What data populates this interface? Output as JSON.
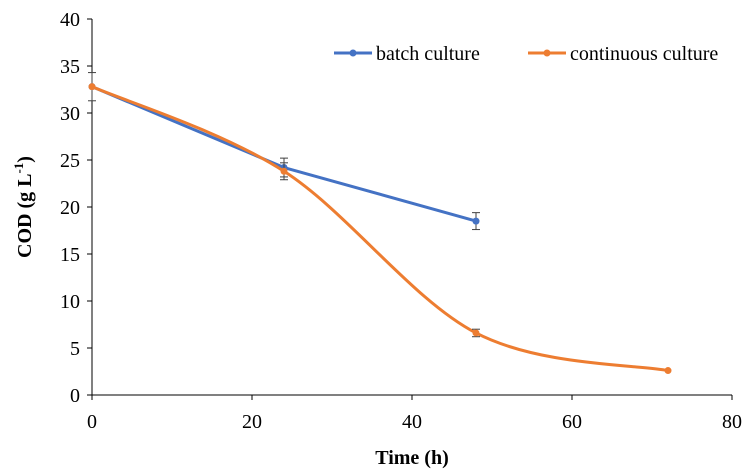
{
  "chart_data": {
    "type": "line",
    "title": "",
    "xlabel": "Time (h)",
    "ylabel_main": "COD (g L",
    "ylabel_sup": "-1",
    "ylabel_close": ")",
    "xlim": [
      0,
      80
    ],
    "ylim": [
      0,
      40
    ],
    "xticks": [
      "0",
      "20",
      "40",
      "60",
      "80"
    ],
    "yticks": [
      "0",
      "5",
      "10",
      "15",
      "20",
      "25",
      "30",
      "35",
      "40"
    ],
    "grid": false,
    "legend_position": "top-right",
    "series": [
      {
        "name": "batch culture",
        "color": "#4472C4",
        "x": [
          0,
          24,
          48
        ],
        "y": [
          32.8,
          24.2,
          18.5
        ],
        "error": [
          1.5,
          1.0,
          0.9
        ],
        "smooth": false
      },
      {
        "name": "continuous culture",
        "color": "#ED7D31",
        "x": [
          0,
          24,
          48,
          72
        ],
        "y": [
          32.8,
          23.8,
          6.6,
          2.6
        ],
        "error": [
          0,
          0.9,
          0.4,
          0
        ],
        "smooth": true
      }
    ]
  }
}
